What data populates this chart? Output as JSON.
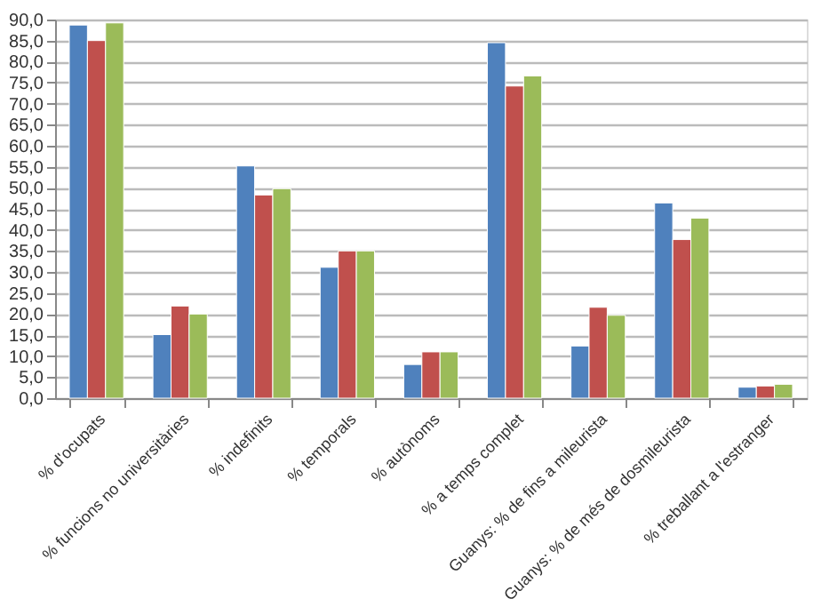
{
  "chart_data": {
    "type": "bar",
    "categories": [
      "% d'ocupats",
      "% funcions no universitàries",
      "% indefinits",
      "% temporals",
      "% autònoms",
      "% a temps complet",
      "Guanys: % de fins a mileurista",
      "Guanys: % de més de dosmileurista",
      "% treballant a l'estranger"
    ],
    "series": [
      {
        "color": "#4f81bd",
        "values": [
          88.7,
          15.1,
          55.2,
          31.1,
          8.0,
          84.5,
          12.4,
          46.4,
          2.6
        ]
      },
      {
        "color": "#c0504d",
        "values": [
          85.0,
          21.9,
          48.3,
          35.0,
          11.0,
          74.2,
          21.6,
          37.7,
          2.9
        ]
      },
      {
        "color": "#9bbb59",
        "values": [
          89.2,
          20.0,
          49.8,
          35.0,
          11.0,
          76.6,
          19.7,
          42.8,
          3.3
        ]
      }
    ],
    "ylim": [
      0,
      90
    ],
    "yticks": [
      {
        "value": 0,
        "label": "0,0"
      },
      {
        "value": 5,
        "label": "5,0"
      },
      {
        "value": 10,
        "label": "10,0"
      },
      {
        "value": 15,
        "label": "15,0"
      },
      {
        "value": 20,
        "label": "20,0"
      },
      {
        "value": 25,
        "label": "25,0"
      },
      {
        "value": 30,
        "label": "30,0"
      },
      {
        "value": 35,
        "label": "35,0"
      },
      {
        "value": 40,
        "label": "40,0"
      },
      {
        "value": 45,
        "label": "45,0"
      },
      {
        "value": 50,
        "label": "50,0"
      },
      {
        "value": 55,
        "label": "55,0"
      },
      {
        "value": 60,
        "label": "60,0"
      },
      {
        "value": 65,
        "label": "65,0"
      },
      {
        "value": 70,
        "label": "70,0"
      },
      {
        "value": 75,
        "label": "75,0"
      },
      {
        "value": 80,
        "label": "80,0"
      },
      {
        "value": 85,
        "label": "85,0"
      },
      {
        "value": 90,
        "label": "90,0"
      }
    ],
    "grid": "y"
  }
}
